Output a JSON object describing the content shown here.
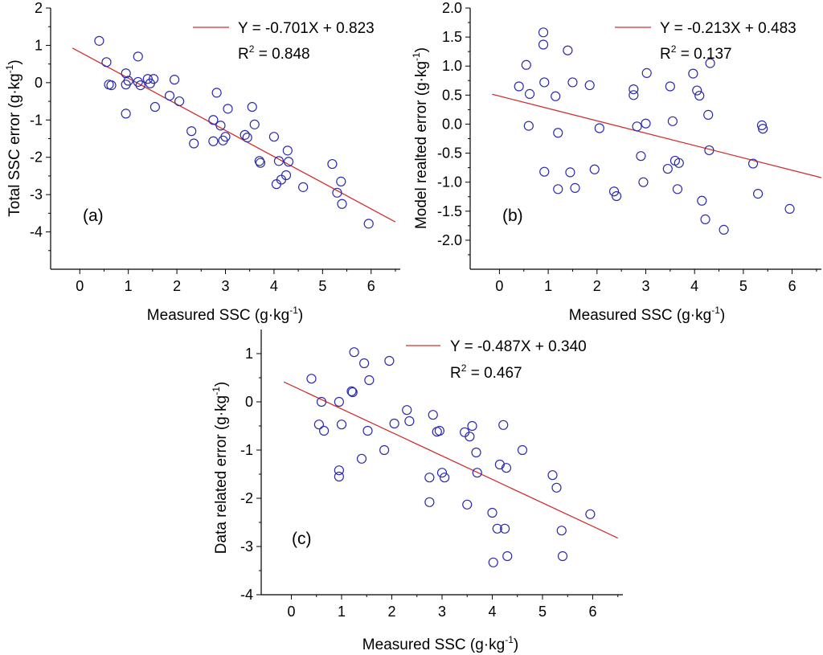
{
  "chart_data": [
    {
      "id": "a",
      "type": "scatter",
      "panel_label": "(a)",
      "xlabel": "Measured SSC (g·kg",
      "xlabel_sup": "-1",
      "xlabel_end": ")",
      "ylabel": "Total SSC error (g·kg",
      "ylabel_sup": "-1",
      "ylabel_end": ")",
      "xlim": [
        -0.6,
        6.6
      ],
      "ylim": [
        -5,
        2
      ],
      "xticks": [
        "0",
        "1",
        "2",
        "3",
        "4",
        "5",
        "6"
      ],
      "yticks": [
        "2",
        "1",
        "0",
        "-1",
        "-2",
        "-3",
        "-4"
      ],
      "fit": {
        "equation": "Y = -0.701X + 0.823",
        "r2_prefix": "R",
        "r2_sup": "2",
        "r2_value": " = 0.848",
        "slope": -0.701,
        "intercept": 0.823,
        "x_range": [
          -0.15,
          6.5
        ],
        "color": "#d03030"
      },
      "marker_color": "#2b2bb0",
      "points": [
        [
          0.4,
          1.12
        ],
        [
          0.55,
          0.55
        ],
        [
          0.6,
          -0.05
        ],
        [
          0.65,
          -0.07
        ],
        [
          0.95,
          -0.83
        ],
        [
          0.95,
          0.25
        ],
        [
          0.95,
          -0.05
        ],
        [
          1.0,
          0.05
        ],
        [
          1.2,
          0.7
        ],
        [
          1.2,
          0.02
        ],
        [
          1.25,
          -0.07
        ],
        [
          1.4,
          0.1
        ],
        [
          1.45,
          -0.02
        ],
        [
          1.52,
          0.1
        ],
        [
          1.55,
          -0.65
        ],
        [
          1.85,
          -0.35
        ],
        [
          1.95,
          0.08
        ],
        [
          2.05,
          -0.5
        ],
        [
          2.3,
          -1.3
        ],
        [
          2.35,
          -1.63
        ],
        [
          2.75,
          -1.0
        ],
        [
          2.75,
          -1.57
        ],
        [
          2.82,
          -0.27
        ],
        [
          2.9,
          -1.15
        ],
        [
          2.95,
          -1.55
        ],
        [
          3.0,
          -1.45
        ],
        [
          3.05,
          -0.7
        ],
        [
          3.4,
          -1.4
        ],
        [
          3.45,
          -1.47
        ],
        [
          3.55,
          -0.65
        ],
        [
          3.6,
          -1.12
        ],
        [
          3.7,
          -2.1
        ],
        [
          3.72,
          -2.15
        ],
        [
          4.0,
          -1.45
        ],
        [
          4.05,
          -2.72
        ],
        [
          4.1,
          -2.1
        ],
        [
          4.15,
          -2.6
        ],
        [
          4.25,
          -2.48
        ],
        [
          4.28,
          -1.82
        ],
        [
          4.3,
          -2.12
        ],
        [
          4.6,
          -2.8
        ],
        [
          5.2,
          -2.18
        ],
        [
          5.3,
          -2.95
        ],
        [
          5.38,
          -2.65
        ],
        [
          5.4,
          -3.25
        ],
        [
          5.95,
          -3.78
        ]
      ]
    },
    {
      "id": "b",
      "type": "scatter",
      "panel_label": "(b)",
      "xlabel": "Measured SSC (g·kg",
      "xlabel_sup": "-1",
      "xlabel_end": ")",
      "ylabel": "Model realted error (g·kg",
      "ylabel_sup": "-1",
      "ylabel_end": ")",
      "xlim": [
        -0.6,
        6.6
      ],
      "ylim": [
        -2.5,
        2.0
      ],
      "xticks": [
        "0",
        "1",
        "2",
        "3",
        "4",
        "5",
        "6"
      ],
      "yticks": [
        "2.0",
        "1.5",
        "1.0",
        "0.5",
        "0.0",
        "-0.5",
        "-1.0",
        "-1.5",
        "-2.0"
      ],
      "fit": {
        "equation": "Y = -0.213X + 0.483",
        "r2_prefix": "R",
        "r2_sup": "2",
        "r2_value": " = 0.137",
        "slope": -0.213,
        "intercept": 0.483,
        "x_range": [
          -0.15,
          6.6
        ],
        "color": "#d03030"
      },
      "marker_color": "#2b2bb0",
      "points": [
        [
          0.4,
          0.65
        ],
        [
          0.55,
          1.02
        ],
        [
          0.6,
          -0.03
        ],
        [
          0.62,
          0.52
        ],
        [
          0.9,
          1.58
        ],
        [
          0.9,
          1.37
        ],
        [
          0.92,
          0.72
        ],
        [
          0.92,
          -0.82
        ],
        [
          1.15,
          0.48
        ],
        [
          1.2,
          -0.15
        ],
        [
          1.2,
          -1.12
        ],
        [
          1.4,
          1.27
        ],
        [
          1.45,
          -0.83
        ],
        [
          1.5,
          0.72
        ],
        [
          1.55,
          -1.1
        ],
        [
          1.85,
          0.67
        ],
        [
          1.95,
          -0.78
        ],
        [
          2.05,
          -0.07
        ],
        [
          2.35,
          -1.16
        ],
        [
          2.4,
          -1.24
        ],
        [
          2.75,
          0.6
        ],
        [
          2.75,
          0.5
        ],
        [
          2.82,
          -0.04
        ],
        [
          2.9,
          -0.55
        ],
        [
          2.95,
          -1.0
        ],
        [
          3.0,
          0.01
        ],
        [
          3.02,
          0.88
        ],
        [
          3.45,
          -0.77
        ],
        [
          3.5,
          0.65
        ],
        [
          3.55,
          0.05
        ],
        [
          3.6,
          -0.63
        ],
        [
          3.65,
          -1.12
        ],
        [
          3.68,
          -0.67
        ],
        [
          3.97,
          0.87
        ],
        [
          4.05,
          0.58
        ],
        [
          4.1,
          0.49
        ],
        [
          4.15,
          -1.32
        ],
        [
          4.22,
          -1.64
        ],
        [
          4.28,
          0.16
        ],
        [
          4.3,
          -0.45
        ],
        [
          4.32,
          1.05
        ],
        [
          4.6,
          -1.82
        ],
        [
          5.2,
          -0.68
        ],
        [
          5.3,
          -1.2
        ],
        [
          5.38,
          -0.02
        ],
        [
          5.4,
          -0.08
        ],
        [
          5.95,
          -1.46
        ]
      ]
    },
    {
      "id": "c",
      "type": "scatter",
      "panel_label": "(c)",
      "xlabel": "Measured SSC (g·kg",
      "xlabel_sup": "-1",
      "xlabel_end": ")",
      "ylabel": "Data related error (g·kg",
      "ylabel_sup": "-1",
      "ylabel_end": ")",
      "xlim": [
        -0.6,
        6.6
      ],
      "ylim": [
        -4,
        1.5
      ],
      "xticks": [
        "0",
        "1",
        "2",
        "3",
        "4",
        "5",
        "6"
      ],
      "yticks": [
        "1",
        "0",
        "-1",
        "-2",
        "-3",
        "-4"
      ],
      "fit": {
        "equation": "Y = -0.487X + 0.340",
        "r2_prefix": "R",
        "r2_sup": "2",
        "r2_value": " = 0.467",
        "slope": -0.487,
        "intercept": 0.34,
        "x_range": [
          -0.15,
          6.5
        ],
        "color": "#d03030"
      },
      "marker_color": "#2b2bb0",
      "points": [
        [
          0.4,
          0.48
        ],
        [
          0.55,
          -0.47
        ],
        [
          0.6,
          0.0
        ],
        [
          0.65,
          -0.6
        ],
        [
          0.95,
          -1.42
        ],
        [
          0.95,
          -1.55
        ],
        [
          0.95,
          0.0
        ],
        [
          1.0,
          -0.47
        ],
        [
          1.2,
          0.22
        ],
        [
          1.22,
          0.2
        ],
        [
          1.25,
          1.03
        ],
        [
          1.4,
          -1.18
        ],
        [
          1.45,
          0.8
        ],
        [
          1.52,
          -0.6
        ],
        [
          1.55,
          0.45
        ],
        [
          1.85,
          -1.0
        ],
        [
          1.95,
          0.85
        ],
        [
          2.05,
          -0.45
        ],
        [
          2.3,
          -0.17
        ],
        [
          2.35,
          -0.4
        ],
        [
          2.75,
          -1.57
        ],
        [
          2.75,
          -2.08
        ],
        [
          2.82,
          -0.27
        ],
        [
          2.9,
          -0.62
        ],
        [
          2.95,
          -0.6
        ],
        [
          3.0,
          -1.47
        ],
        [
          3.05,
          -1.57
        ],
        [
          3.45,
          -0.63
        ],
        [
          3.5,
          -2.13
        ],
        [
          3.55,
          -0.72
        ],
        [
          3.6,
          -0.5
        ],
        [
          3.68,
          -1.05
        ],
        [
          3.7,
          -1.47
        ],
        [
          4.0,
          -2.3
        ],
        [
          4.02,
          -3.33
        ],
        [
          4.1,
          -2.63
        ],
        [
          4.15,
          -1.3
        ],
        [
          4.22,
          -0.48
        ],
        [
          4.25,
          -2.63
        ],
        [
          4.28,
          -1.37
        ],
        [
          4.3,
          -3.2
        ],
        [
          4.6,
          -1.0
        ],
        [
          5.2,
          -1.52
        ],
        [
          5.28,
          -1.78
        ],
        [
          5.38,
          -2.67
        ],
        [
          5.4,
          -3.2
        ],
        [
          5.95,
          -2.33
        ]
      ]
    }
  ]
}
